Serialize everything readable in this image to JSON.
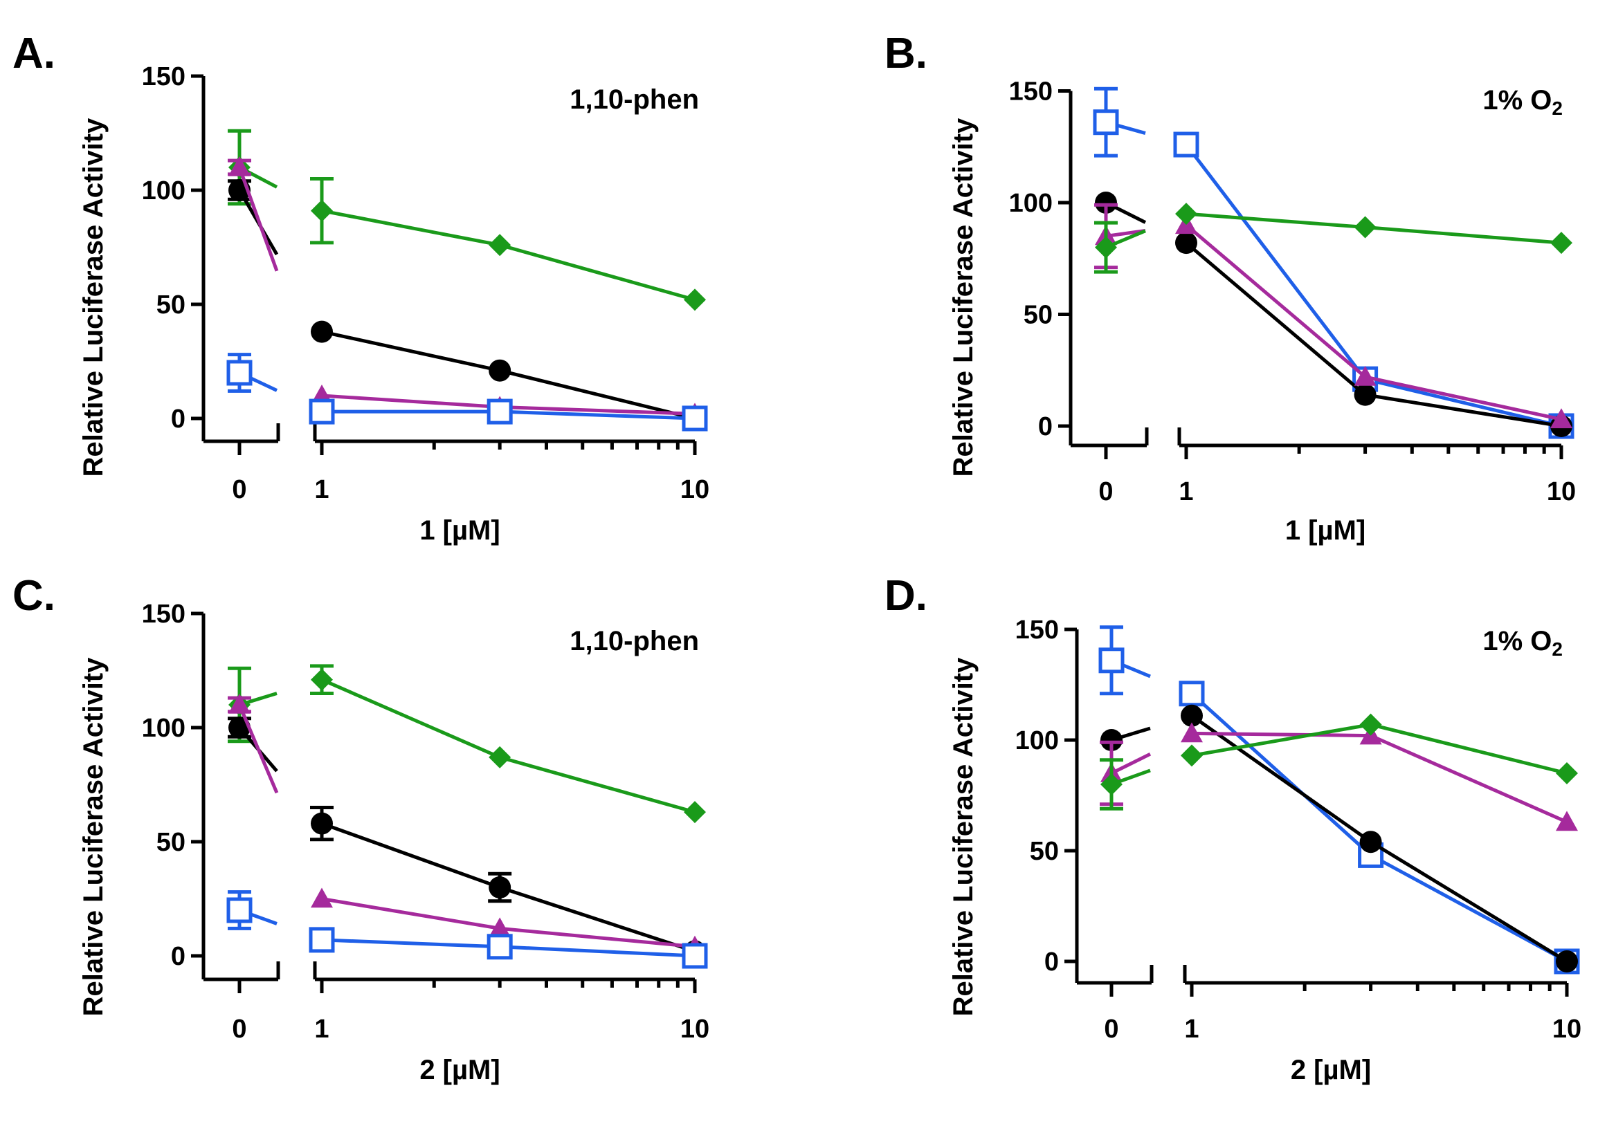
{
  "chart_data": [
    {
      "type": "line",
      "panel_label": "A.",
      "condition": "1,10-phen",
      "condition_sub": "",
      "ylabel": "Relative Luciferase Activity",
      "xlabel": "1 [µM]",
      "xscale": "log with separate zero segment",
      "ylim": [
        -10,
        150
      ],
      "yticks": [
        0,
        50,
        100,
        150
      ],
      "xtick_labels": [
        "0",
        "1",
        "10"
      ],
      "x": [
        0,
        1,
        3,
        10
      ],
      "series": [
        {
          "name": "green-diamond",
          "color": "#1a9a1a",
          "marker": "diamond",
          "values": [
            110,
            91,
            76,
            52
          ],
          "errors": [
            16,
            14,
            0,
            0
          ]
        },
        {
          "name": "black-circle",
          "color": "#000000",
          "marker": "circle",
          "values": [
            100,
            38,
            21,
            0
          ],
          "errors": [
            4,
            0,
            0,
            0
          ]
        },
        {
          "name": "magenta-triangle",
          "color": "#a52a9c",
          "marker": "triangle",
          "values": [
            110,
            10,
            5,
            2
          ],
          "errors": [
            3,
            0,
            0,
            0
          ]
        },
        {
          "name": "blue-square",
          "color": "#1f5fe8",
          "marker": "square",
          "values": [
            20,
            3,
            3,
            0
          ],
          "errors": [
            8,
            0,
            0,
            0
          ]
        }
      ]
    },
    {
      "type": "line",
      "panel_label": "B.",
      "condition": "1% O",
      "condition_sub": "2",
      "ylabel": "Relative Luciferase Activity",
      "xlabel": "1 [µM]",
      "xscale": "log with separate zero segment",
      "ylim": [
        -8,
        155
      ],
      "yticks": [
        0,
        50,
        100,
        150
      ],
      "xtick_labels": [
        "0",
        "1",
        "10"
      ],
      "x": [
        0,
        1,
        3,
        10
      ],
      "series": [
        {
          "name": "blue-square",
          "color": "#1f5fe8",
          "marker": "square",
          "values": [
            136,
            126,
            21,
            0
          ],
          "errors": [
            15,
            0,
            0,
            0
          ]
        },
        {
          "name": "black-circle",
          "color": "#000000",
          "marker": "circle",
          "values": [
            100,
            82,
            14,
            0
          ],
          "errors": [
            0,
            0,
            0,
            0
          ]
        },
        {
          "name": "magenta-triangle",
          "color": "#a52a9c",
          "marker": "triangle",
          "values": [
            85,
            90,
            22,
            3
          ],
          "errors": [
            14,
            0,
            0,
            0
          ]
        },
        {
          "name": "green-diamond",
          "color": "#1a9a1a",
          "marker": "diamond",
          "values": [
            80,
            95,
            89,
            82
          ],
          "errors": [
            11,
            0,
            0,
            0
          ]
        }
      ]
    },
    {
      "type": "line",
      "panel_label": "C.",
      "condition": "1,10-phen",
      "condition_sub": "",
      "ylabel": "Relative Luciferase Activity",
      "xlabel": "2 [µM]",
      "xscale": "log with separate zero segment",
      "ylim": [
        -10,
        150
      ],
      "yticks": [
        0,
        50,
        100,
        150
      ],
      "xtick_labels": [
        "0",
        "1",
        "10"
      ],
      "x": [
        0,
        1,
        3,
        10
      ],
      "series": [
        {
          "name": "green-diamond",
          "color": "#1a9a1a",
          "marker": "diamond",
          "values": [
            110,
            121,
            87,
            63
          ],
          "errors": [
            16,
            6,
            0,
            0
          ]
        },
        {
          "name": "black-circle",
          "color": "#000000",
          "marker": "circle",
          "values": [
            100,
            58,
            30,
            2
          ],
          "errors": [
            4,
            7,
            6,
            0
          ]
        },
        {
          "name": "magenta-triangle",
          "color": "#a52a9c",
          "marker": "triangle",
          "values": [
            110,
            25,
            12,
            4
          ],
          "errors": [
            3,
            0,
            0,
            0
          ]
        },
        {
          "name": "blue-square",
          "color": "#1f5fe8",
          "marker": "square",
          "values": [
            20,
            7,
            4,
            0
          ],
          "errors": [
            8,
            0,
            0,
            0
          ]
        }
      ]
    },
    {
      "type": "line",
      "panel_label": "D.",
      "condition": "1% O",
      "condition_sub": "2",
      "ylabel": "Relative Luciferase Activity",
      "xlabel": "2 [µM]",
      "xscale": "log with separate zero segment",
      "ylim": [
        -8,
        155
      ],
      "yticks": [
        0,
        50,
        100,
        150
      ],
      "xtick_labels": [
        "0",
        "1",
        "10"
      ],
      "x": [
        0,
        1,
        3,
        10
      ],
      "series": [
        {
          "name": "blue-square",
          "color": "#1f5fe8",
          "marker": "square",
          "values": [
            136,
            121,
            48,
            0
          ],
          "errors": [
            15,
            0,
            0,
            0
          ]
        },
        {
          "name": "black-circle",
          "color": "#000000",
          "marker": "circle",
          "values": [
            100,
            111,
            54,
            0
          ],
          "errors": [
            0,
            0,
            0,
            0
          ]
        },
        {
          "name": "magenta-triangle",
          "color": "#a52a9c",
          "marker": "triangle",
          "values": [
            85,
            103,
            102,
            63
          ],
          "errors": [
            14,
            0,
            0,
            0
          ]
        },
        {
          "name": "green-diamond",
          "color": "#1a9a1a",
          "marker": "diamond",
          "values": [
            80,
            93,
            107,
            85
          ],
          "errors": [
            11,
            0,
            0,
            0
          ]
        }
      ]
    }
  ]
}
